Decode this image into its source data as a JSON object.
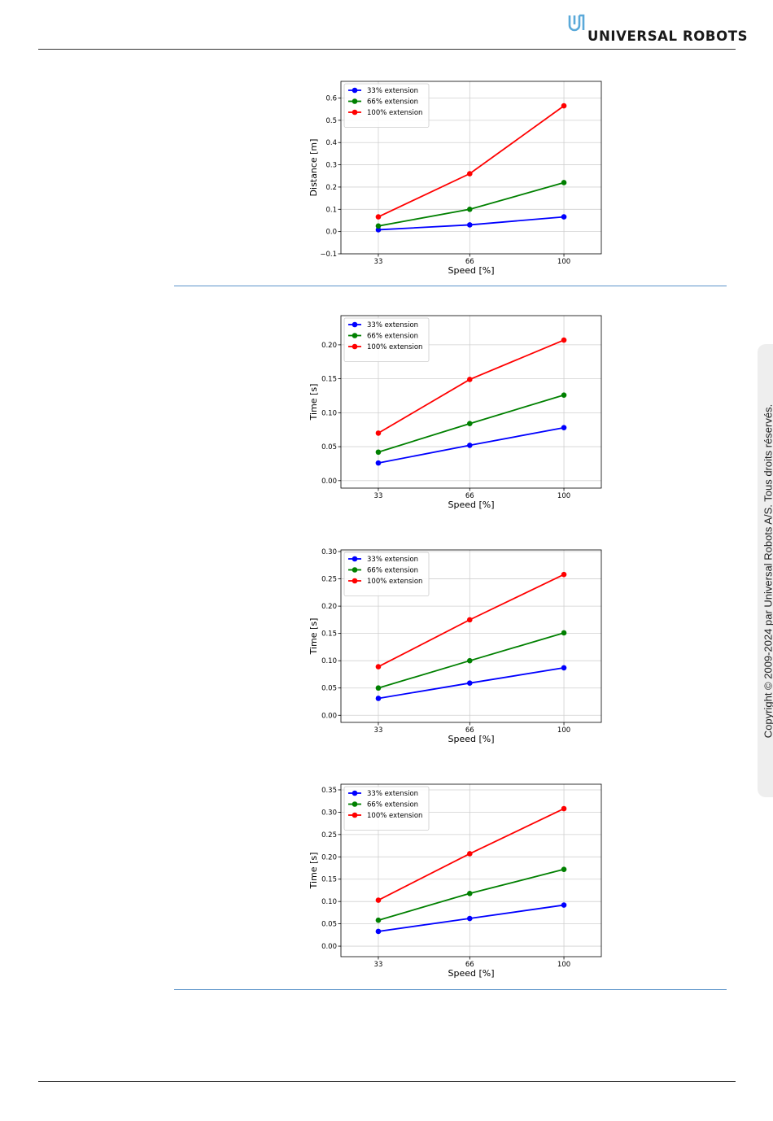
{
  "header": {
    "brand": "UNIVERSAL ROBOTS"
  },
  "copyright": "Copyright © 2009-2024 par Universal Robots A/S. Tous droits réservés.",
  "chart_data": [
    {
      "type": "line",
      "xlabel": "Speed [%]",
      "ylabel": "Distance [m]",
      "x": [
        33,
        66,
        100
      ],
      "series": [
        {
          "name": "33% extension",
          "color": "#0000ff",
          "values": [
            0.008,
            0.03,
            0.066
          ]
        },
        {
          "name": "66% extension",
          "color": "#008000",
          "values": [
            0.025,
            0.1,
            0.22
          ]
        },
        {
          "name": "100% extension",
          "color": "#ff0000",
          "values": [
            0.066,
            0.26,
            0.565
          ]
        }
      ],
      "xlim": [
        19.5,
        113.5
      ],
      "xticks": [
        33,
        66,
        100
      ],
      "ylim": [
        -0.1,
        0.675
      ],
      "yticks": [
        {
          "value": -0.1,
          "label": "−0.1"
        },
        {
          "value": 0,
          "label": "0.0"
        },
        0.1,
        0.2,
        0.3,
        0.4,
        0.5,
        0.6
      ],
      "grid": true,
      "legend": "upper left"
    },
    {
      "type": "line",
      "xlabel": "Speed [%]",
      "ylabel": "Time [s]",
      "x": [
        33,
        66,
        100
      ],
      "series": [
        {
          "name": "33% extension",
          "color": "#0000ff",
          "values": [
            0.026,
            0.052,
            0.078
          ]
        },
        {
          "name": "66% extension",
          "color": "#008000",
          "values": [
            0.042,
            0.084,
            0.126
          ]
        },
        {
          "name": "100% extension",
          "color": "#ff0000",
          "values": [
            0.07,
            0.149,
            0.207
          ]
        }
      ],
      "xlim": [
        19.5,
        113.5
      ],
      "xticks": [
        33,
        66,
        100
      ],
      "ylim": [
        -0.011,
        0.243
      ],
      "yticks": [
        {
          "value": 0,
          "label": "0.00"
        },
        0.05,
        {
          "value": 0.1,
          "label": "0.10"
        },
        0.15,
        {
          "value": 0.2,
          "label": "0.20"
        }
      ],
      "grid": true,
      "legend": "upper left"
    },
    {
      "type": "line",
      "xlabel": "Speed [%]",
      "ylabel": "Time [s]",
      "x": [
        33,
        66,
        100
      ],
      "series": [
        {
          "name": "33% extension",
          "color": "#0000ff",
          "values": [
            0.031,
            0.059,
            0.087
          ]
        },
        {
          "name": "66% extension",
          "color": "#008000",
          "values": [
            0.05,
            0.1,
            0.151
          ]
        },
        {
          "name": "100% extension",
          "color": "#ff0000",
          "values": [
            0.089,
            0.175,
            0.258
          ]
        }
      ],
      "xlim": [
        19.5,
        113.5
      ],
      "xticks": [
        33,
        66,
        100
      ],
      "ylim": [
        -0.013,
        0.303
      ],
      "yticks": [
        {
          "value": 0,
          "label": "0.00"
        },
        0.05,
        {
          "value": 0.1,
          "label": "0.10"
        },
        0.15,
        {
          "value": 0.2,
          "label": "0.20"
        },
        0.25,
        {
          "value": 0.3,
          "label": "0.30"
        }
      ],
      "grid": true,
      "legend": "upper left"
    },
    {
      "type": "line",
      "xlabel": "Speed [%]",
      "ylabel": "Time [s]",
      "x": [
        33,
        66,
        100
      ],
      "series": [
        {
          "name": "33% extension",
          "color": "#0000ff",
          "values": [
            0.033,
            0.062,
            0.092
          ]
        },
        {
          "name": "66% extension",
          "color": "#008000",
          "values": [
            0.058,
            0.118,
            0.172
          ]
        },
        {
          "name": "100% extension",
          "color": "#ff0000",
          "values": [
            0.103,
            0.207,
            0.308
          ]
        }
      ],
      "xlim": [
        19.5,
        113.5
      ],
      "xticks": [
        33,
        66,
        100
      ],
      "ylim": [
        -0.0236,
        0.3627
      ],
      "yticks": [
        {
          "value": 0,
          "label": "0.00"
        },
        0.05,
        {
          "value": 0.1,
          "label": "0.10"
        },
        0.15,
        {
          "value": 0.2,
          "label": "0.20"
        },
        0.25,
        {
          "value": 0.3,
          "label": "0.30"
        },
        0.35
      ],
      "grid": true,
      "legend": "upper left"
    }
  ]
}
